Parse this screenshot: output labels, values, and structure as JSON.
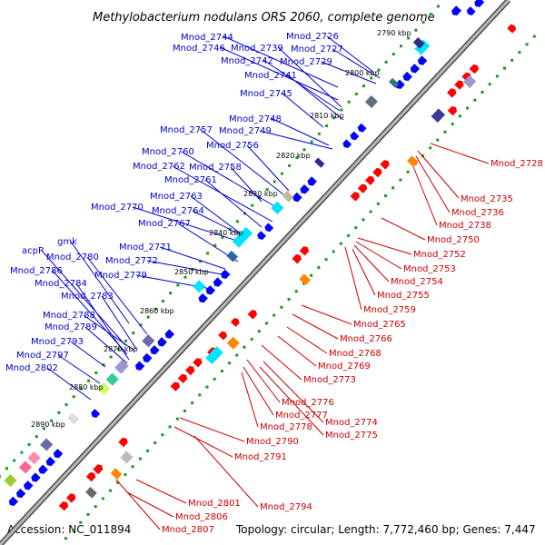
{
  "title": "Methylobacterium nodulans ORS 2060, complete genome",
  "accession": "Accession: NC_011894",
  "topology": "Topology: circular; Length: 7,772,460 bp; Genes: 7,447",
  "kbp_markers": [
    "2790 kbp",
    "2800 kbp",
    "2810 kbp",
    "2820 kbp",
    "2830 kbp",
    "2840 kbp",
    "2850 kbp",
    "2860 kbp",
    "2870 kbp",
    "2880 kbp",
    "2890 kbp"
  ],
  "blue_labels": [
    "Mnod_2744",
    "Mnod_2726",
    "Mnod_2746",
    "Mnod_2739",
    "Mnod_2727",
    "Mnod_2742",
    "Mnod_2729",
    "Mnod_2741",
    "Mnod_2745",
    "Mnod_2748",
    "Mnod_2757",
    "Mnod_2749",
    "Mnod_2756",
    "Mnod_2760",
    "Mnod_2762",
    "Mnod_2758",
    "Mnod_2761",
    "Mnod_2763",
    "Mnod_2770",
    "Mnod_2764",
    "Mnod_2767",
    "Mnod_2771",
    "gmk",
    "Mnod_2772",
    "acpP",
    "Mnod_2780",
    "Mnod_2786",
    "Mnod_2779",
    "Mnod_2784",
    "Mnod_2783",
    "Mnod_2788",
    "Mnod_2789",
    "Mnod_2793",
    "Mnod_2797",
    "Mnod_2802"
  ],
  "red_labels": [
    "Mnod_2728",
    "Mnod_2735",
    "Mnod_2736",
    "Mnod_2738",
    "Mnod_2750",
    "Mnod_2752",
    "Mnod_2753",
    "Mnod_2754",
    "Mnod_2755",
    "Mnod_2759",
    "Mnod_2765",
    "Mnod_2766",
    "Mnod_2768",
    "Mnod_2769",
    "Mnod_2773",
    "Mnod_2776",
    "Mnod_2777",
    "Mnod_2774",
    "Mnod_2778",
    "Mnod_2775",
    "Mnod_2790",
    "Mnod_2791",
    "Mnod_2794",
    "Mnod_2801",
    "Mnod_2806",
    "Mnod_2807"
  ],
  "colors": {
    "forward_genes": "#0000ff",
    "reverse_genes": "#ff0000",
    "backbone": "#8c8c8c",
    "gc_dots": "#1a9a1a",
    "forward_labels": "#0000cc",
    "reverse_labels": "#cc0000"
  }
}
